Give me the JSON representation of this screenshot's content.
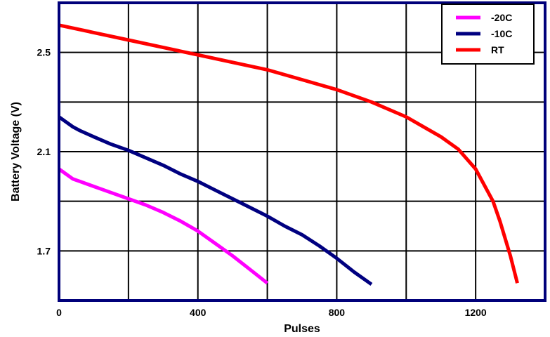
{
  "chart_data": {
    "type": "line",
    "xlabel": "Pulses",
    "ylabel": "Battery Voltage (V)",
    "xlim": [
      0,
      1400
    ],
    "ylim": [
      1.5,
      2.7
    ],
    "x_ticks": [
      0,
      400,
      800,
      1200
    ],
    "x_tick_labels": [
      "0",
      "400",
      "800",
      "1200"
    ],
    "y_ticks": [
      1.7,
      2.1,
      2.5
    ],
    "y_tick_labels": [
      "1.7",
      "2.1",
      "2.5"
    ],
    "grid": true,
    "legend_position": "top-right",
    "series": [
      {
        "name": "-20C",
        "color": "#ff00ff",
        "x": [
          0,
          20,
          40,
          60,
          100,
          150,
          200,
          250,
          300,
          350,
          400,
          450,
          500,
          550,
          600
        ],
        "y": [
          2.03,
          2.01,
          1.99,
          1.98,
          1.96,
          1.935,
          1.91,
          1.885,
          1.855,
          1.82,
          1.78,
          1.73,
          1.68,
          1.625,
          1.57
        ]
      },
      {
        "name": "-10C",
        "color": "#000080",
        "x": [
          0,
          20,
          40,
          60,
          100,
          150,
          200,
          250,
          300,
          350,
          400,
          450,
          500,
          550,
          600,
          650,
          700,
          750,
          800,
          850,
          900
        ],
        "y": [
          2.24,
          2.22,
          2.2,
          2.185,
          2.16,
          2.13,
          2.105,
          2.075,
          2.045,
          2.01,
          1.98,
          1.945,
          1.91,
          1.875,
          1.84,
          1.8,
          1.765,
          1.72,
          1.67,
          1.615,
          1.565
        ]
      },
      {
        "name": "RT",
        "color": "#ff0000",
        "x": [
          0,
          100,
          200,
          300,
          400,
          500,
          600,
          700,
          800,
          900,
          1000,
          1050,
          1100,
          1150,
          1200,
          1250,
          1270,
          1300,
          1320
        ],
        "y": [
          2.61,
          2.58,
          2.55,
          2.52,
          2.49,
          2.46,
          2.43,
          2.39,
          2.35,
          2.3,
          2.24,
          2.2,
          2.16,
          2.11,
          2.03,
          1.9,
          1.82,
          1.68,
          1.57
        ]
      }
    ]
  }
}
